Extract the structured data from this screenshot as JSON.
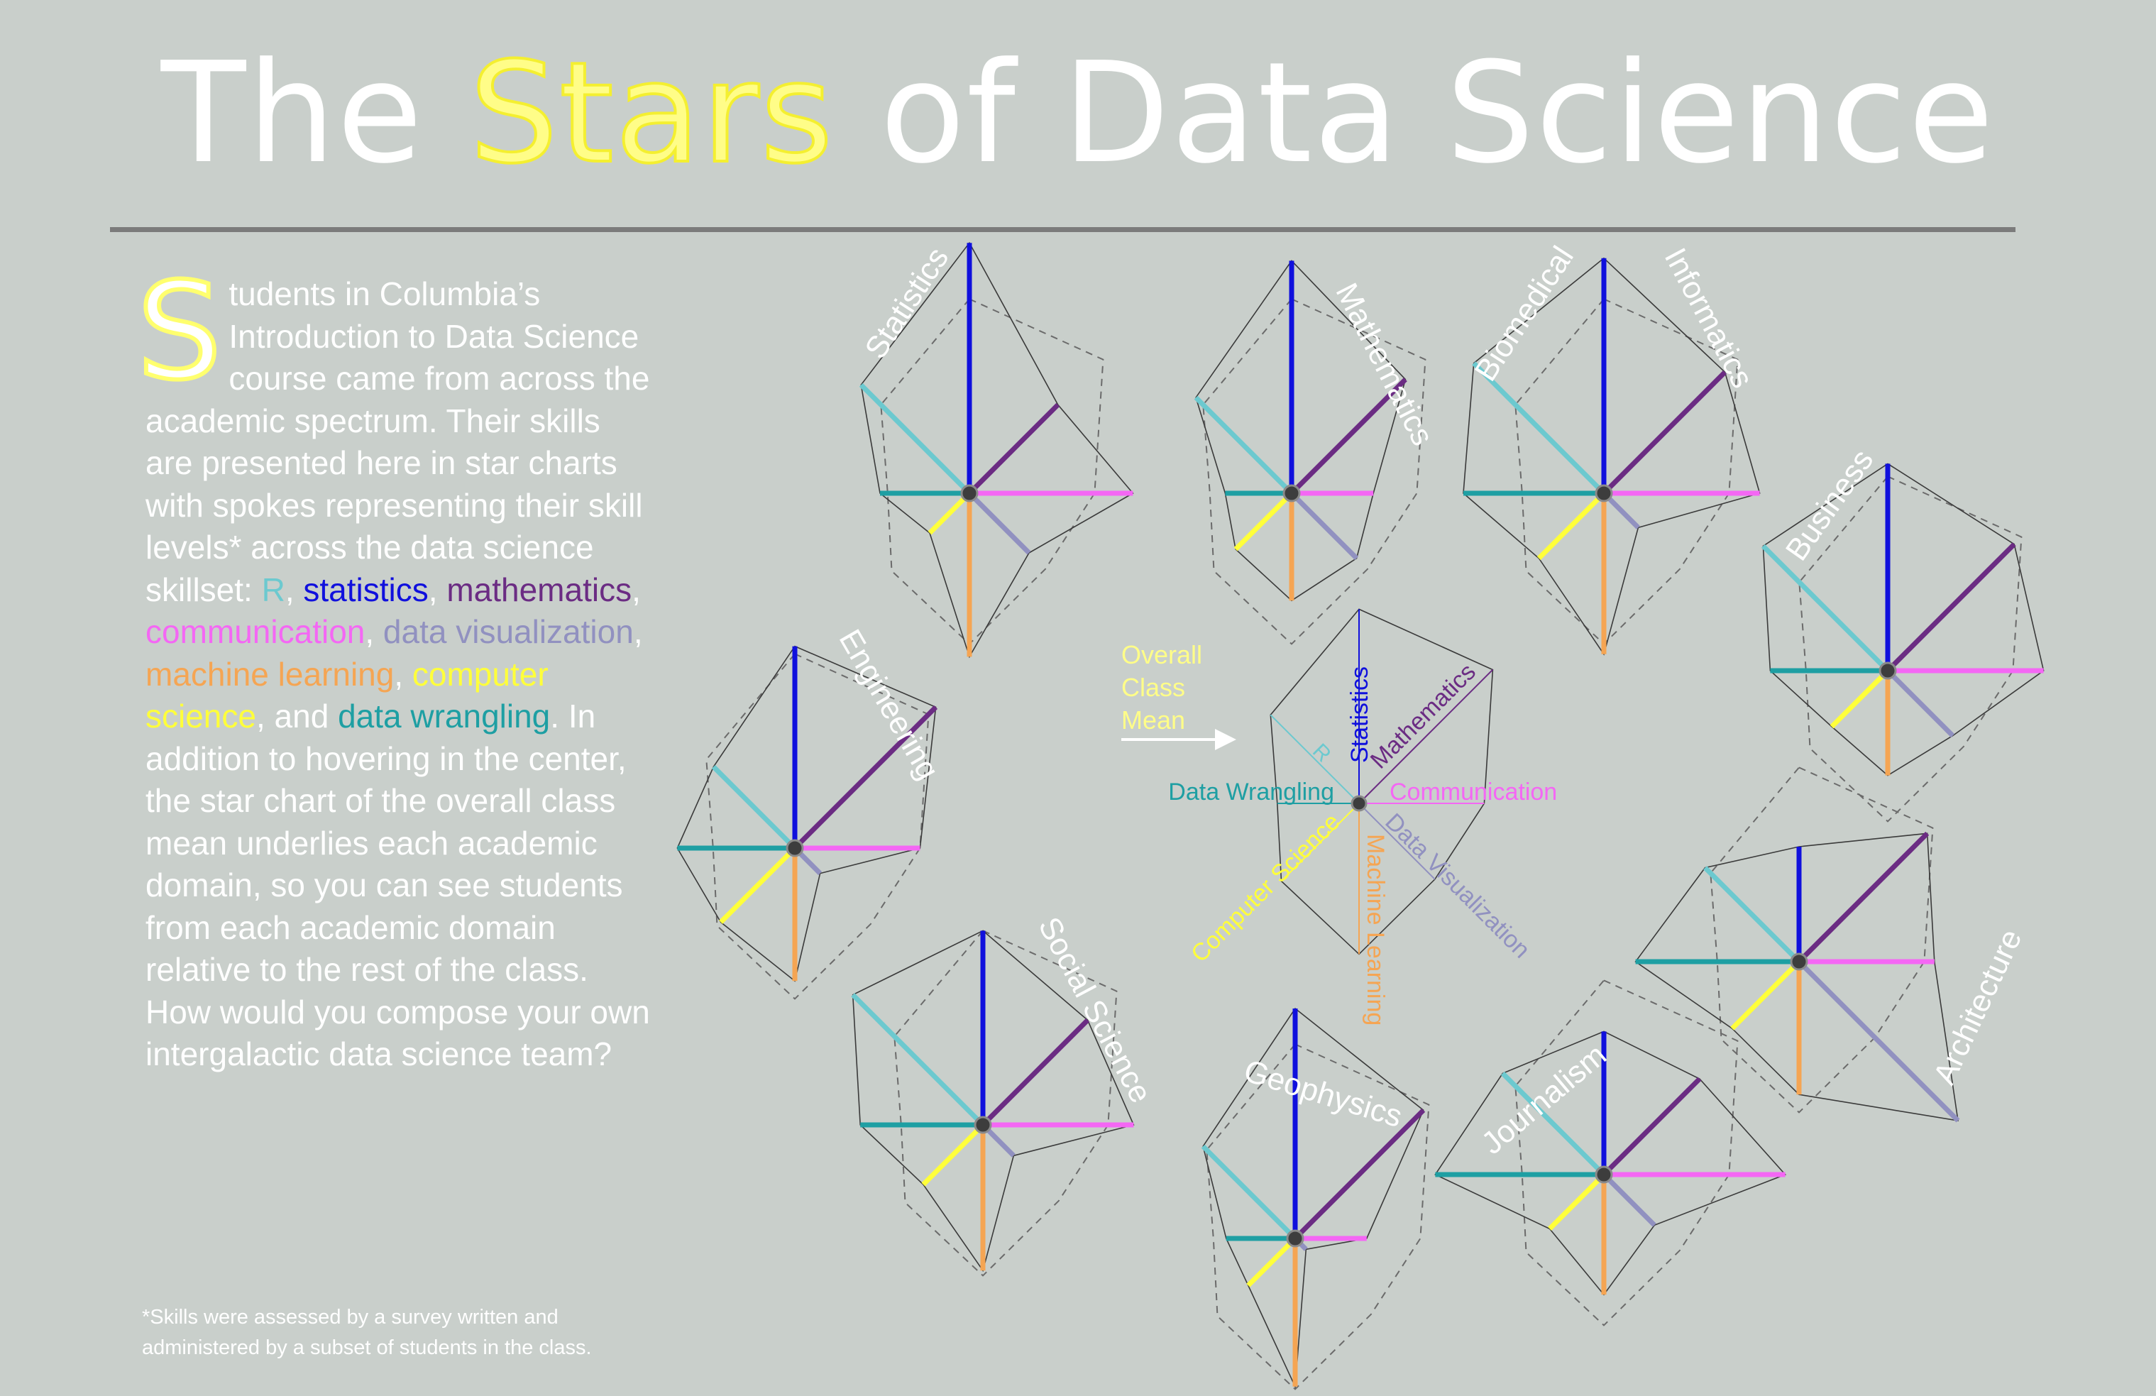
{
  "title": {
    "pre": "The ",
    "highlight": "Stars",
    "post": " of Data Science",
    "highlight_color": "#fffd88"
  },
  "intro": {
    "drop_cap": "S",
    "lead": "tudents in Columbia’s Introduction to Data Science course came from across the academic spectrum. Their skills are presented here in star charts with spokes representing their skill levels* across the data science skillset: ",
    "skills_in_text": [
      {
        "text": "R",
        "color": "#6cc9cf"
      },
      {
        "text": "statistics",
        "color": "#1010dd"
      },
      {
        "text": "mathematics",
        "color": "#6b2c83"
      },
      {
        "text": "communication",
        "color": "#f467f4"
      },
      {
        "text": "data visualization",
        "color": "#9191c0"
      },
      {
        "text": "machine learning",
        "color": "#f5a553"
      },
      {
        "text": "computer science",
        "color": "#ffff3a"
      },
      {
        "text": "data wrangling",
        "color": "#1e9fa3"
      }
    ],
    "sep": ", ",
    "last_sep": ", and ",
    "tail": ". In addition to hovering in the center, the star chart of the overall class mean underlies each academic domain, so you can see students from each academic domain relative to the rest of the class. How would you compose your own intergalactic data science team?"
  },
  "footnote": "*Skills were assessed by a survey written and administered by a subset of students in the class.",
  "center_callout": "Overall Class Mean",
  "chart_data": {
    "type": "radar",
    "axes": [
      "Statistics",
      "Mathematics",
      "Communication",
      "Data Visualization",
      "Machine Learning",
      "Computer Science",
      "Data Wrangling",
      "R"
    ],
    "axis_colors": [
      "#1010dd",
      "#6b2c83",
      "#f467f4",
      "#9191c0",
      "#f5a553",
      "#ffff3a",
      "#1e9fa3",
      "#6cc9cf"
    ],
    "scale_max": 10,
    "overall_mean": [
      7.6,
      7.4,
      4.9,
      4.2,
      5.9,
      4.3,
      3.2,
      4.9
    ],
    "center_axis_labels": [
      "Statistics",
      "Mathematics",
      "Communication",
      "Data Visualization",
      "Machine Learning",
      "Computer Science",
      "Data Wrangling",
      "R"
    ],
    "domains": [
      {
        "name": "Statistics",
        "values": [
          9.8,
          4.9,
          6.4,
          3.3,
          6.4,
          2.2,
          3.5,
          6.0
        ]
      },
      {
        "name": "Mathematics",
        "values": [
          9.1,
          6.3,
          3.2,
          3.6,
          4.2,
          3.1,
          2.6,
          5.3
        ]
      },
      {
        "name": "Biomedical Informatics",
        "values": [
          9.2,
          6.7,
          6.1,
          1.9,
          6.3,
          3.6,
          5.5,
          7.2
        ]
      },
      {
        "name": "Business",
        "values": [
          8.1,
          7.0,
          6.1,
          3.6,
          4.1,
          3.1,
          4.6,
          6.9
        ]
      },
      {
        "name": "Engineering",
        "values": [
          7.9,
          7.8,
          4.9,
          1.4,
          5.2,
          4.1,
          4.6,
          4.5
        ]
      },
      {
        "name": "Social Science",
        "values": [
          7.6,
          5.8,
          5.9,
          1.7,
          5.7,
          3.3,
          4.8,
          7.2
        ]
      },
      {
        "name": "Geophysics",
        "values": [
          9.0,
          7.1,
          2.8,
          0.6,
          5.8,
          2.6,
          2.7,
          5.1
        ]
      },
      {
        "name": "Journalism",
        "values": [
          5.6,
          5.3,
          7.1,
          2.8,
          4.7,
          3.0,
          6.6,
          5.6
        ]
      },
      {
        "name": "Architecture",
        "values": [
          4.5,
          7.1,
          5.3,
          8.8,
          5.2,
          3.7,
          6.4,
          5.2
        ]
      }
    ]
  }
}
